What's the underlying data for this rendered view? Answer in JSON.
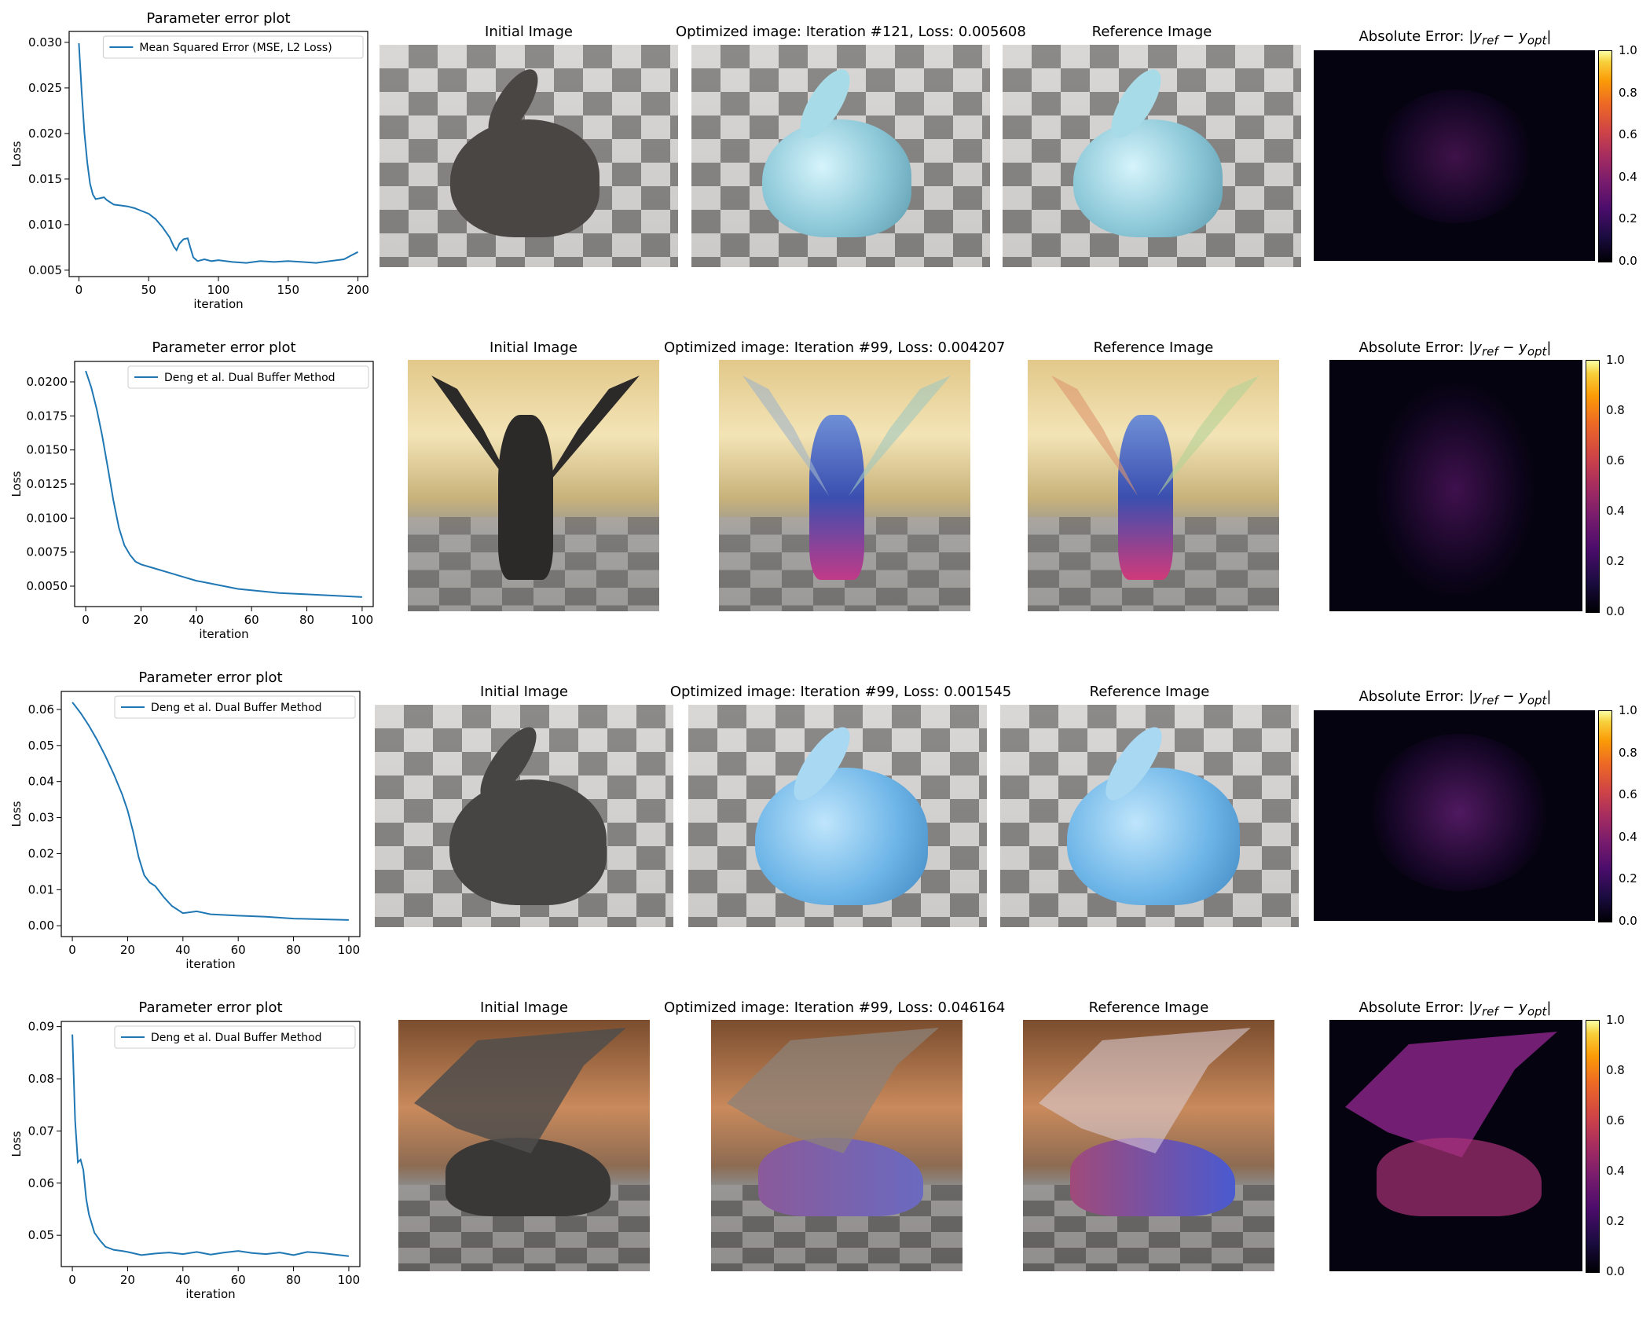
{
  "colors": {
    "line": "#1f77b4",
    "axis": "#000000"
  },
  "rows": [
    {
      "plot_title": "Parameter error plot",
      "titles": [
        "Initial Image",
        "Optimized image: Iteration #121, Loss: 0.005608",
        "Reference Image"
      ],
      "error_title": "Absolute Error: |y_ref − y_opt|",
      "colorbar_ticks": [
        "0.0",
        "0.2",
        "0.4",
        "0.6",
        "0.8",
        "1.0"
      ]
    },
    {
      "plot_title": "Parameter error plot",
      "titles": [
        "Initial Image",
        "Optimized image: Iteration #99, Loss: 0.004207",
        "Reference Image"
      ],
      "error_title": "Absolute Error: |y_ref − y_opt|",
      "colorbar_ticks": [
        "0.0",
        "0.2",
        "0.4",
        "0.6",
        "0.8",
        "1.0"
      ]
    },
    {
      "plot_title": "Parameter error plot",
      "titles": [
        "Initial Image",
        "Optimized image: Iteration #99, Loss: 0.001545",
        "Reference Image"
      ],
      "error_title": "Absolute Error: |y_ref − y_opt|",
      "colorbar_ticks": [
        "0.0",
        "0.2",
        "0.4",
        "0.6",
        "0.8",
        "1.0"
      ]
    },
    {
      "plot_title": "Parameter error plot",
      "titles": [
        "Initial Image",
        "Optimized image: Iteration #99, Loss: 0.046164",
        "Reference Image"
      ],
      "error_title": "Absolute Error: |y_ref − y_opt|",
      "colorbar_ticks": [
        "0.0",
        "0.2",
        "0.4",
        "0.6",
        "0.8",
        "1.0"
      ]
    }
  ],
  "chart_data": [
    {
      "type": "line",
      "title": "Parameter error plot",
      "xlabel": "iteration",
      "ylabel": "Loss",
      "xlim": [
        -7,
        207
      ],
      "ylim": [
        0.0043,
        0.0312
      ],
      "xticks": [
        0,
        50,
        100,
        150,
        200
      ],
      "yticks": [
        0.005,
        0.01,
        0.015,
        0.02,
        0.025,
        0.03
      ],
      "ytick_labels": [
        "0.005",
        "0.010",
        "0.015",
        "0.020",
        "0.025",
        "0.030"
      ],
      "legend_position": "top-right",
      "series": [
        {
          "name": "Mean Squared Error (MSE, L2 Loss)",
          "x": [
            0,
            2,
            4,
            6,
            8,
            10,
            12,
            15,
            18,
            20,
            25,
            30,
            35,
            40,
            45,
            50,
            55,
            60,
            65,
            68,
            70,
            72,
            75,
            78,
            80,
            82,
            85,
            90,
            95,
            100,
            110,
            120,
            130,
            140,
            150,
            160,
            170,
            180,
            190,
            195,
            200
          ],
          "y": [
            0.0299,
            0.0245,
            0.02,
            0.0168,
            0.0145,
            0.0133,
            0.0128,
            0.0129,
            0.013,
            0.0127,
            0.0122,
            0.0121,
            0.012,
            0.0118,
            0.0115,
            0.0112,
            0.0106,
            0.0097,
            0.0086,
            0.0076,
            0.0072,
            0.0079,
            0.0084,
            0.0085,
            0.0074,
            0.0064,
            0.006,
            0.0062,
            0.006,
            0.0061,
            0.0059,
            0.0058,
            0.006,
            0.0059,
            0.006,
            0.0059,
            0.0058,
            0.006,
            0.0062,
            0.0066,
            0.007
          ]
        }
      ]
    },
    {
      "type": "line",
      "title": "Parameter error plot",
      "xlabel": "iteration",
      "ylabel": "Loss",
      "xlim": [
        -4,
        104
      ],
      "ylim": [
        0.0035,
        0.0215
      ],
      "xticks": [
        0,
        20,
        40,
        60,
        80,
        100
      ],
      "yticks": [
        0.005,
        0.0075,
        0.01,
        0.0125,
        0.015,
        0.0175,
        0.02
      ],
      "ytick_labels": [
        "0.0050",
        "0.0075",
        "0.0100",
        "0.0125",
        "0.0150",
        "0.0175",
        "0.0200"
      ],
      "legend_position": "top-right",
      "series": [
        {
          "name": "Deng et al. Dual Buffer Method",
          "x": [
            0,
            2,
            4,
            6,
            8,
            10,
            12,
            14,
            16,
            18,
            20,
            25,
            30,
            35,
            40,
            45,
            50,
            55,
            60,
            70,
            80,
            90,
            100
          ],
          "y": [
            0.0208,
            0.0196,
            0.018,
            0.016,
            0.0137,
            0.0113,
            0.0093,
            0.008,
            0.0073,
            0.0068,
            0.0066,
            0.0063,
            0.006,
            0.0057,
            0.0054,
            0.0052,
            0.005,
            0.0048,
            0.0047,
            0.0045,
            0.0044,
            0.0043,
            0.0042
          ]
        }
      ]
    },
    {
      "type": "line",
      "title": "Parameter error plot",
      "xlabel": "iteration",
      "ylabel": "Loss",
      "xlim": [
        -4,
        104
      ],
      "ylim": [
        -0.003,
        0.065
      ],
      "xticks": [
        0,
        20,
        40,
        60,
        80,
        100
      ],
      "yticks": [
        0.0,
        0.01,
        0.02,
        0.03,
        0.04,
        0.05,
        0.06
      ],
      "ytick_labels": [
        "0.00",
        "0.01",
        "0.02",
        "0.03",
        "0.04",
        "0.05",
        "0.06"
      ],
      "legend_position": "top-right",
      "series": [
        {
          "name": "Deng et al. Dual Buffer Method",
          "x": [
            0,
            3,
            6,
            9,
            12,
            15,
            18,
            20,
            22,
            24,
            26,
            28,
            30,
            33,
            36,
            40,
            45,
            50,
            55,
            60,
            70,
            80,
            90,
            100
          ],
          "y": [
            0.062,
            0.059,
            0.0555,
            0.0515,
            0.047,
            0.042,
            0.0365,
            0.032,
            0.026,
            0.019,
            0.014,
            0.012,
            0.011,
            0.008,
            0.0055,
            0.0035,
            0.004,
            0.0032,
            0.003,
            0.0028,
            0.0025,
            0.002,
            0.0018,
            0.0016
          ]
        }
      ]
    },
    {
      "type": "line",
      "title": "Parameter error plot",
      "xlabel": "iteration",
      "ylabel": "Loss",
      "xlim": [
        -4,
        104
      ],
      "ylim": [
        0.044,
        0.091
      ],
      "xticks": [
        0,
        20,
        40,
        60,
        80,
        100
      ],
      "yticks": [
        0.05,
        0.06,
        0.07,
        0.08,
        0.09
      ],
      "ytick_labels": [
        "0.05",
        "0.06",
        "0.07",
        "0.08",
        "0.09"
      ],
      "legend_position": "top-right",
      "series": [
        {
          "name": "Deng et al. Dual Buffer Method",
          "x": [
            0,
            1,
            2,
            3,
            4,
            5,
            6,
            8,
            10,
            12,
            15,
            18,
            20,
            25,
            30,
            35,
            40,
            45,
            50,
            55,
            60,
            65,
            70,
            75,
            80,
            85,
            90,
            95,
            100
          ],
          "y": [
            0.0885,
            0.072,
            0.064,
            0.0645,
            0.0625,
            0.057,
            0.054,
            0.0505,
            0.049,
            0.0478,
            0.0472,
            0.047,
            0.0468,
            0.0462,
            0.0465,
            0.0467,
            0.0464,
            0.0468,
            0.0463,
            0.0467,
            0.047,
            0.0466,
            0.0464,
            0.0467,
            0.0462,
            0.0468,
            0.0466,
            0.0463,
            0.046
          ]
        }
      ]
    }
  ]
}
